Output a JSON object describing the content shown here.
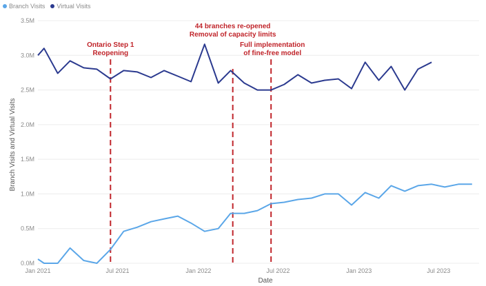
{
  "chart_data": {
    "type": "line",
    "xlabel": "Date",
    "ylabel": "Branch Visits and Virtual Visits",
    "ylim": [
      0,
      3.5
    ],
    "y_unit": "M",
    "yticks": [
      "0.0M",
      "0.5M",
      "1.0M",
      "1.5M",
      "2.0M",
      "2.5M",
      "3.0M",
      "3.5M"
    ],
    "xlim": [
      "2021-01-01",
      "2023-10-01"
    ],
    "xticks": [
      {
        "label": "Jan 2021",
        "date": "2021-01-01"
      },
      {
        "label": "Jul 2021",
        "date": "2021-07-01"
      },
      {
        "label": "Jan 2022",
        "date": "2022-01-01"
      },
      {
        "label": "Jul 2022",
        "date": "2022-07-01"
      },
      {
        "label": "Jan 2023",
        "date": "2023-01-01"
      },
      {
        "label": "Jul 2023",
        "date": "2023-07-01"
      }
    ],
    "grid": true,
    "legend_position": "top-left",
    "series": [
      {
        "name": "Branch Visits",
        "color": "#5aa6e8",
        "points": [
          [
            "2021-01-01",
            0.06
          ],
          [
            "2021-01-15",
            0.0
          ],
          [
            "2021-02-15",
            0.0
          ],
          [
            "2021-03-15",
            0.22
          ],
          [
            "2021-04-15",
            0.04
          ],
          [
            "2021-05-15",
            0.0
          ],
          [
            "2021-06-15",
            0.2
          ],
          [
            "2021-07-15",
            0.46
          ],
          [
            "2021-08-15",
            0.52
          ],
          [
            "2021-09-15",
            0.6
          ],
          [
            "2021-10-15",
            0.64
          ],
          [
            "2021-11-15",
            0.68
          ],
          [
            "2021-12-15",
            0.58
          ],
          [
            "2022-01-15",
            0.46
          ],
          [
            "2022-02-15",
            0.5
          ],
          [
            "2022-03-15",
            0.72
          ],
          [
            "2022-04-15",
            0.72
          ],
          [
            "2022-05-15",
            0.76
          ],
          [
            "2022-06-15",
            0.86
          ],
          [
            "2022-07-15",
            0.88
          ],
          [
            "2022-08-15",
            0.92
          ],
          [
            "2022-09-15",
            0.94
          ],
          [
            "2022-10-15",
            1.0
          ],
          [
            "2022-11-15",
            1.0
          ],
          [
            "2022-12-15",
            0.84
          ],
          [
            "2023-01-15",
            1.02
          ],
          [
            "2023-02-15",
            0.94
          ],
          [
            "2023-03-15",
            1.12
          ],
          [
            "2023-04-15",
            1.04
          ],
          [
            "2023-05-15",
            1.12
          ],
          [
            "2023-06-15",
            1.14
          ],
          [
            "2023-07-15",
            1.1
          ],
          [
            "2023-08-15",
            1.14
          ],
          [
            "2023-09-15",
            1.14
          ]
        ]
      },
      {
        "name": "Virtual Visits",
        "color": "#2b3a8f",
        "points": [
          [
            "2021-01-01",
            3.0
          ],
          [
            "2021-01-15",
            3.1
          ],
          [
            "2021-02-15",
            2.74
          ],
          [
            "2021-03-15",
            2.92
          ],
          [
            "2021-04-15",
            2.82
          ],
          [
            "2021-05-15",
            2.8
          ],
          [
            "2021-06-15",
            2.66
          ],
          [
            "2021-07-15",
            2.78
          ],
          [
            "2021-08-15",
            2.76
          ],
          [
            "2021-09-15",
            2.68
          ],
          [
            "2021-10-15",
            2.78
          ],
          [
            "2021-11-15",
            2.7
          ],
          [
            "2021-12-15",
            2.62
          ],
          [
            "2022-01-15",
            3.16
          ],
          [
            "2022-02-15",
            2.6
          ],
          [
            "2022-03-15",
            2.78
          ],
          [
            "2022-04-15",
            2.6
          ],
          [
            "2022-05-15",
            2.5
          ],
          [
            "2022-06-15",
            2.5
          ],
          [
            "2022-07-15",
            2.58
          ],
          [
            "2022-08-15",
            2.72
          ],
          [
            "2022-09-15",
            2.6
          ],
          [
            "2022-10-15",
            2.64
          ],
          [
            "2022-11-15",
            2.66
          ],
          [
            "2022-12-15",
            2.52
          ],
          [
            "2023-01-15",
            2.9
          ],
          [
            "2023-02-15",
            2.64
          ],
          [
            "2023-03-15",
            2.84
          ],
          [
            "2023-04-15",
            2.5
          ],
          [
            "2023-05-15",
            2.8
          ],
          [
            "2023-06-15",
            2.9
          ]
        ]
      }
    ],
    "annotations": [
      {
        "date": "2021-06-15",
        "color": "#c0242a",
        "lines": [
          "Ontario Step 1",
          "Reopening"
        ]
      },
      {
        "date": "2022-03-20",
        "color": "#c0242a",
        "lines": [
          "44 branches re-opened",
          "Removal of capacity limits"
        ]
      },
      {
        "date": "2022-06-15",
        "color": "#c0242a",
        "lines": [
          "Full implementation",
          "of fine-free model"
        ]
      }
    ]
  }
}
